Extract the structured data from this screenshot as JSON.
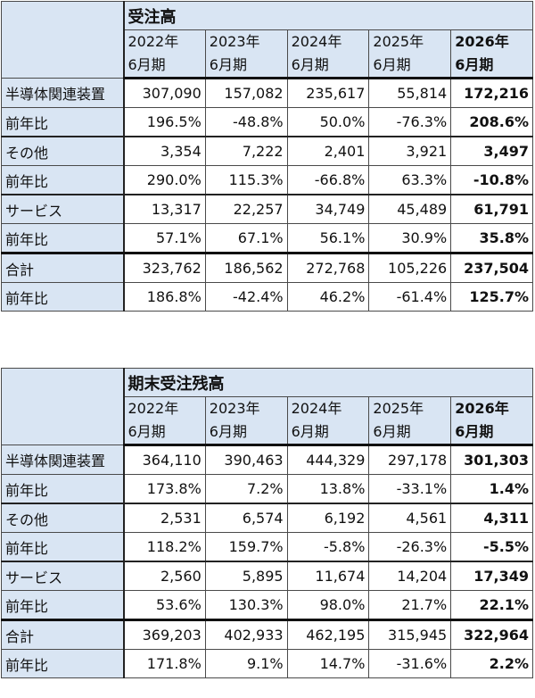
{
  "tables": [
    {
      "title": "受注高",
      "years": [
        {
          "y": "2022年",
          "p": "6月期"
        },
        {
          "y": "2023年",
          "p": "6月期"
        },
        {
          "y": "2024年",
          "p": "6月期"
        },
        {
          "y": "2025年",
          "p": "6月期"
        },
        {
          "y": "2026年",
          "p": "6月期"
        }
      ],
      "rows": [
        {
          "label": "半導体関連装置",
          "values": [
            "307,090",
            "157,082",
            "235,617",
            "55,814",
            "172,216"
          ]
        },
        {
          "label": "前年比",
          "values": [
            "196.5%",
            "-48.8%",
            "50.0%",
            "-76.3%",
            "208.6%"
          ]
        },
        {
          "label": "その他",
          "values": [
            "3,354",
            "7,222",
            "2,401",
            "3,921",
            "3,497"
          ]
        },
        {
          "label": "前年比",
          "values": [
            "290.0%",
            "115.3%",
            "-66.8%",
            "63.3%",
            "-10.8%"
          ]
        },
        {
          "label": "サービス",
          "values": [
            "13,317",
            "22,257",
            "34,749",
            "45,489",
            "61,791"
          ]
        },
        {
          "label": "前年比",
          "values": [
            "57.1%",
            "67.1%",
            "56.1%",
            "30.9%",
            "35.8%"
          ]
        },
        {
          "label": "合計",
          "values": [
            "323,762",
            "186,562",
            "272,768",
            "105,226",
            "237,504"
          ]
        },
        {
          "label": "前年比",
          "values": [
            "186.8%",
            "-42.4%",
            "46.2%",
            "-61.4%",
            "125.7%"
          ]
        }
      ]
    },
    {
      "title": "期末受注残高",
      "years": [
        {
          "y": "2022年",
          "p": "6月期"
        },
        {
          "y": "2023年",
          "p": "6月期"
        },
        {
          "y": "2024年",
          "p": "6月期"
        },
        {
          "y": "2025年",
          "p": "6月期"
        },
        {
          "y": "2026年",
          "p": "6月期"
        }
      ],
      "rows": [
        {
          "label": "半導体関連装置",
          "values": [
            "364,110",
            "390,463",
            "444,329",
            "297,178",
            "301,303"
          ]
        },
        {
          "label": "前年比",
          "values": [
            "173.8%",
            "7.2%",
            "13.8%",
            "-33.1%",
            "1.4%"
          ]
        },
        {
          "label": "その他",
          "values": [
            "2,531",
            "6,574",
            "6,192",
            "4,561",
            "4,311"
          ]
        },
        {
          "label": "前年比",
          "values": [
            "118.2%",
            "159.7%",
            "-5.8%",
            "-26.3%",
            "-5.5%"
          ]
        },
        {
          "label": "サービス",
          "values": [
            "2,560",
            "5,895",
            "11,674",
            "14,204",
            "17,349"
          ]
        },
        {
          "label": "前年比",
          "values": [
            "53.6%",
            "130.3%",
            "98.0%",
            "21.7%",
            "22.1%"
          ]
        },
        {
          "label": "合計",
          "values": [
            "369,203",
            "402,933",
            "462,195",
            "315,945",
            "322,964"
          ]
        },
        {
          "label": "前年比",
          "values": [
            "171.8%",
            "9.1%",
            "14.7%",
            "-31.6%",
            "2.2%"
          ]
        }
      ]
    }
  ]
}
